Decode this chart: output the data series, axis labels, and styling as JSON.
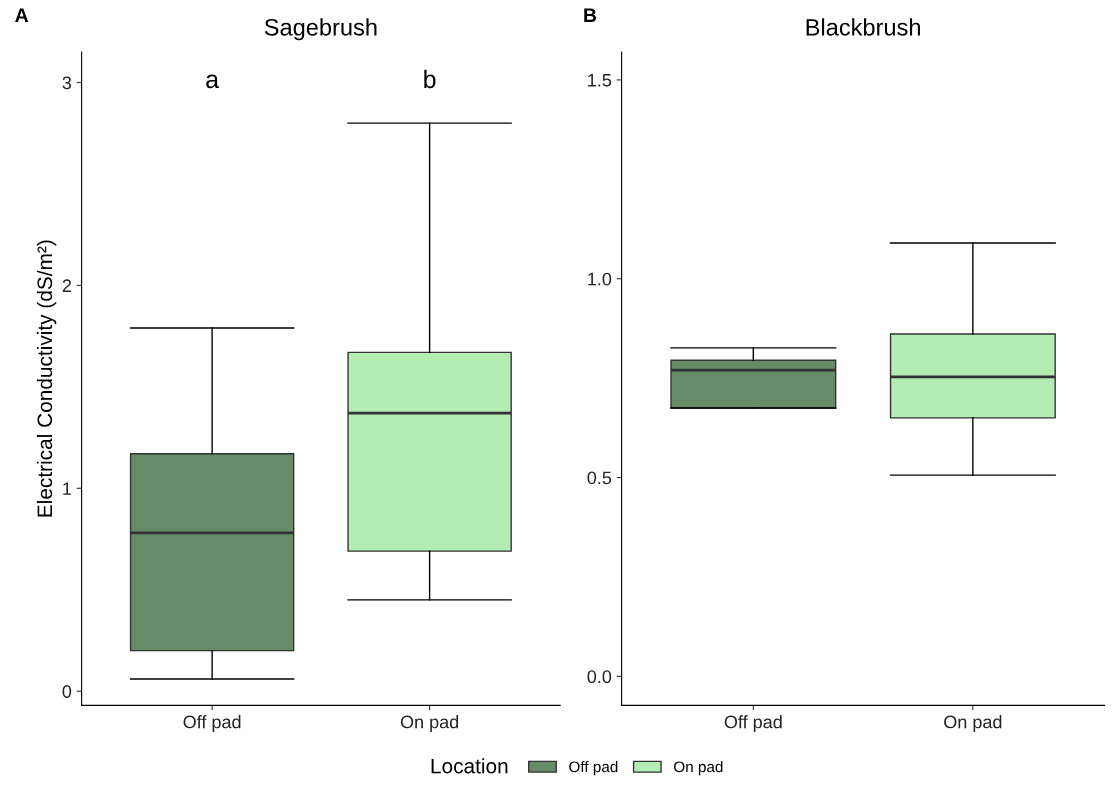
{
  "chart_data": [
    {
      "type": "box",
      "title": "Sagebrush",
      "ylabel": "Electrical Conductivity (dS/m²)",
      "categories": [
        "Off pad",
        "On pad"
      ],
      "series": [
        {
          "name": "Off pad",
          "color": "#678a68",
          "boxes": [
            {
              "low": 0.06,
              "q1": 0.2,
              "median": 0.78,
              "q3": 1.17,
              "high": 1.79
            },
            null
          ]
        },
        {
          "name": "On pad",
          "color": "#b3edb3",
          "boxes": [
            null,
            {
              "low": 0.45,
              "q1": 0.69,
              "median": 1.37,
              "q3": 1.67,
              "high": 2.8
            }
          ]
        }
      ],
      "ylim": [
        -0.07,
        3.15
      ],
      "yticks": [
        0,
        1,
        2,
        3
      ],
      "grid": false,
      "legend": "bottom",
      "legend_title": "Location",
      "annotations": [
        "A",
        "a",
        "b"
      ]
    },
    {
      "type": "box",
      "title": "Blackbrush",
      "categories": [
        "Off pad",
        "On pad"
      ],
      "series": [
        {
          "color": "#678a68",
          "boxes": [
            {
              "low": 0.675,
              "q1": 0.675,
              "median": 0.77,
              "q3": 0.795,
              "high": 0.826
            },
            null
          ]
        },
        {
          "color": "#b3edb3",
          "boxes": [
            null,
            {
              "low": 0.506,
              "q1": 0.65,
              "median": 0.753,
              "q3": 0.861,
              "high": 1.09
            }
          ]
        }
      ],
      "ylim": [
        -0.073,
        1.57
      ],
      "yticks": [
        {
          "value": 0,
          "label": "0.0"
        },
        0.5,
        {
          "value": 1,
          "label": "1.0"
        },
        1.5
      ],
      "grid": false,
      "annotations": [
        "B"
      ]
    }
  ]
}
